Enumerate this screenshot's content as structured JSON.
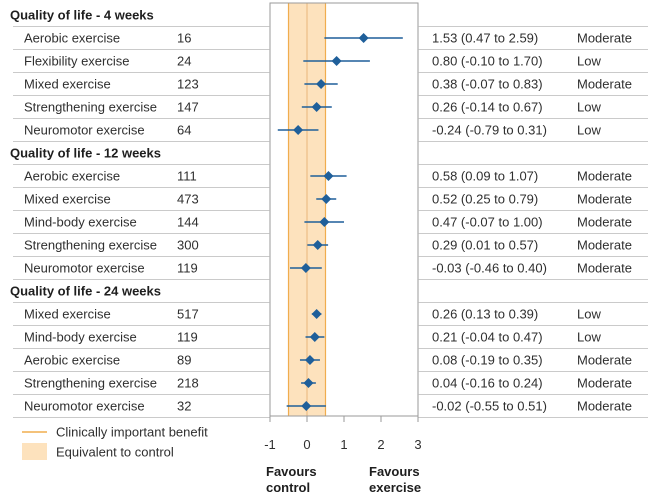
{
  "chart_data": {
    "type": "forest",
    "xlim": [
      -1,
      3
    ],
    "xticks": [
      -1,
      0,
      1,
      2,
      3
    ],
    "clinically_important_benefit": [
      -0.5,
      0.5
    ],
    "reference_line": 0,
    "left_label": [
      "Favours",
      "control"
    ],
    "right_label": [
      "Favours",
      "exercise"
    ],
    "legend": {
      "line": "Clinically important benefit",
      "band": "Equivalent to control"
    },
    "groups": [
      {
        "title": "Quality of life - 4 weeks",
        "rows": [
          {
            "label": "Aerobic exercise",
            "n": "16",
            "est": 1.53,
            "lo": 0.47,
            "hi": 2.59,
            "ci_text": "1.53 (0.47 to 2.59)",
            "certainty": "Moderate"
          },
          {
            "label": "Flexibility exercise",
            "n": "24",
            "est": 0.8,
            "lo": -0.1,
            "hi": 1.7,
            "ci_text": "0.80 (-0.10 to 1.70)",
            "certainty": "Low"
          },
          {
            "label": "Mixed exercise",
            "n": "123",
            "est": 0.38,
            "lo": -0.07,
            "hi": 0.83,
            "ci_text": "0.38 (-0.07 to 0.83)",
            "certainty": "Moderate"
          },
          {
            "label": "Strengthening exercise",
            "n": "147",
            "est": 0.26,
            "lo": -0.14,
            "hi": 0.67,
            "ci_text": "0.26 (-0.14 to 0.67)",
            "certainty": "Low"
          },
          {
            "label": "Neuromotor exercise",
            "n": "64",
            "est": -0.24,
            "lo": -0.79,
            "hi": 0.31,
            "ci_text": "-0.24 (-0.79 to 0.31)",
            "certainty": "Low"
          }
        ]
      },
      {
        "title": "Quality of life - 12 weeks",
        "rows": [
          {
            "label": "Aerobic exercise",
            "n": "111",
            "est": 0.58,
            "lo": 0.09,
            "hi": 1.07,
            "ci_text": "0.58 (0.09 to 1.07)",
            "certainty": "Moderate"
          },
          {
            "label": "Mixed exercise",
            "n": "473",
            "est": 0.52,
            "lo": 0.25,
            "hi": 0.79,
            "ci_text": "0.52 (0.25 to 0.79)",
            "certainty": "Moderate"
          },
          {
            "label": "Mind-body exercise",
            "n": "144",
            "est": 0.47,
            "lo": -0.07,
            "hi": 1.0,
            "ci_text": "0.47 (-0.07 to 1.00)",
            "certainty": "Moderate"
          },
          {
            "label": "Strengthening exercise",
            "n": "300",
            "est": 0.29,
            "lo": 0.01,
            "hi": 0.57,
            "ci_text": "0.29 (0.01 to 0.57)",
            "certainty": "Moderate"
          },
          {
            "label": "Neuromotor exercise",
            "n": "119",
            "est": -0.03,
            "lo": -0.46,
            "hi": 0.4,
            "ci_text": "-0.03 (-0.46 to 0.40)",
            "certainty": "Moderate"
          }
        ]
      },
      {
        "title": "Quality of life - 24 weeks",
        "rows": [
          {
            "label": "Mixed exercise",
            "n": "517",
            "est": 0.26,
            "lo": 0.13,
            "hi": 0.39,
            "ci_text": "0.26 (0.13 to 0.39)",
            "certainty": "Low"
          },
          {
            "label": "Mind-body exercise",
            "n": "119",
            "est": 0.21,
            "lo": -0.04,
            "hi": 0.47,
            "ci_text": "0.21 (-0.04 to 0.47)",
            "certainty": "Low"
          },
          {
            "label": "Aerobic exercise",
            "n": "89",
            "est": 0.08,
            "lo": -0.19,
            "hi": 0.35,
            "ci_text": "0.08 (-0.19 to 0.35)",
            "certainty": "Moderate"
          },
          {
            "label": "Strengthening exercise",
            "n": "218",
            "est": 0.04,
            "lo": -0.16,
            "hi": 0.24,
            "ci_text": "0.04 (-0.16 to 0.24)",
            "certainty": "Moderate"
          },
          {
            "label": "Neuromotor exercise",
            "n": "32",
            "est": -0.02,
            "lo": -0.55,
            "hi": 0.51,
            "ci_text": "-0.02 (-0.55 to 0.51)",
            "certainty": "Moderate"
          }
        ]
      }
    ],
    "colors": {
      "band": "#fde2bd",
      "band_edge": "#f0ad4e",
      "marker": "#1f5f9a",
      "grid": "#b9b9b9",
      "frame": "#9a9a9a"
    }
  }
}
